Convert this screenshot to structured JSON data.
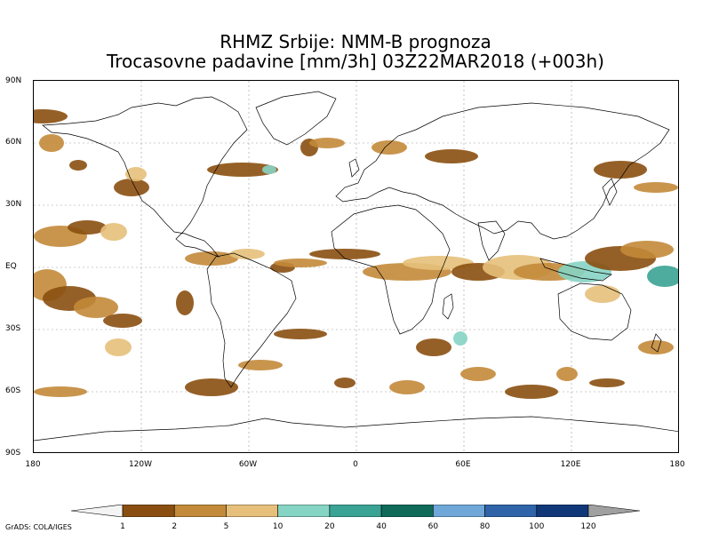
{
  "title": {
    "line1": "RHMZ Srbije: NMM-B prognoza",
    "line2": "Trocasovne padavine [mm/3h] 03Z22MAR2018 (+003h)"
  },
  "axes": {
    "y_labels": [
      "90N",
      "60N",
      "30N",
      "EQ",
      "30S",
      "60S",
      "90S"
    ],
    "x_labels": [
      "180",
      "120W",
      "60W",
      "0",
      "60E",
      "120E",
      "180"
    ]
  },
  "colorbar": {
    "labels": [
      "1",
      "2",
      "5",
      "10",
      "20",
      "40",
      "60",
      "80",
      "100",
      "120"
    ],
    "colors": [
      "#8a4f10",
      "#c38a3a",
      "#e6c07a",
      "#86d4c4",
      "#3aa394",
      "#0f6a5a",
      "#6fa8d8",
      "#2f64a8",
      "#103878",
      "#a0a0a0"
    ],
    "under_color": "#f4f4f4"
  },
  "credit": "GrADS: COLA/IGES",
  "precip_colors": [
    "#8a4f10",
    "#c38a3a",
    "#e6c07a",
    "#86d4c4",
    "#3aa394",
    "#6fa8d8"
  ]
}
